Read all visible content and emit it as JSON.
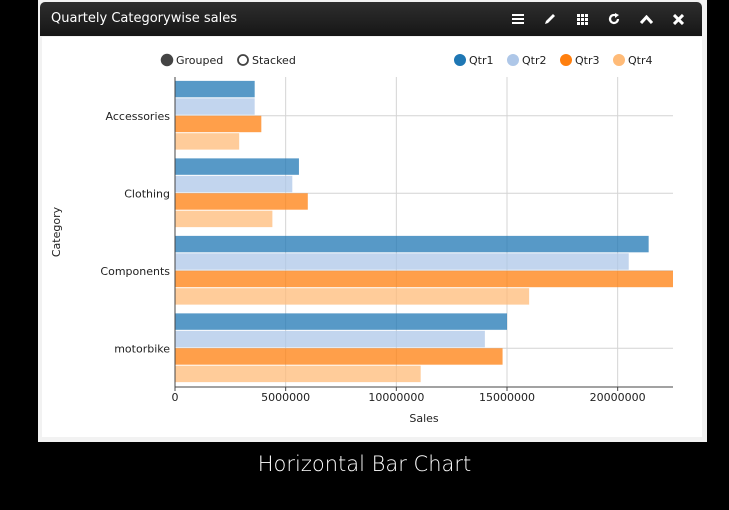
{
  "window": {
    "title": "Quartely Categorywise sales",
    "tools": [
      "menu-icon",
      "pencil-icon",
      "grid-icon",
      "refresh-icon",
      "collapse-icon",
      "close-icon"
    ]
  },
  "controls": {
    "grouped_label": "Grouped",
    "stacked_label": "Stacked",
    "selected": "Grouped"
  },
  "caption": "Horizontal Bar Chart",
  "chart_data": {
    "type": "bar",
    "orientation": "horizontal",
    "categories": [
      "Accessories",
      "Clothing",
      "Components",
      "motorbike"
    ],
    "series": [
      {
        "name": "Qtr1",
        "color": "#1f77b4",
        "values": [
          3600000,
          5600000,
          21400000,
          15000000
        ]
      },
      {
        "name": "Qtr2",
        "color": "#aec7e8",
        "values": [
          3600000,
          5300000,
          20500000,
          14000000
        ]
      },
      {
        "name": "Qtr3",
        "color": "#ff7f0e",
        "values": [
          3900000,
          6000000,
          22500000,
          14800000
        ]
      },
      {
        "name": "Qtr4",
        "color": "#ffbb78",
        "values": [
          2900000,
          4400000,
          16000000,
          11100000
        ]
      }
    ],
    "xlabel": "Sales",
    "ylabel": "Category",
    "xlim": [
      0,
      22500000
    ],
    "xticks": [
      "0",
      "5000000",
      "10000000",
      "15000000",
      "20000000"
    ],
    "grid": true,
    "legend_position": "top-right"
  }
}
